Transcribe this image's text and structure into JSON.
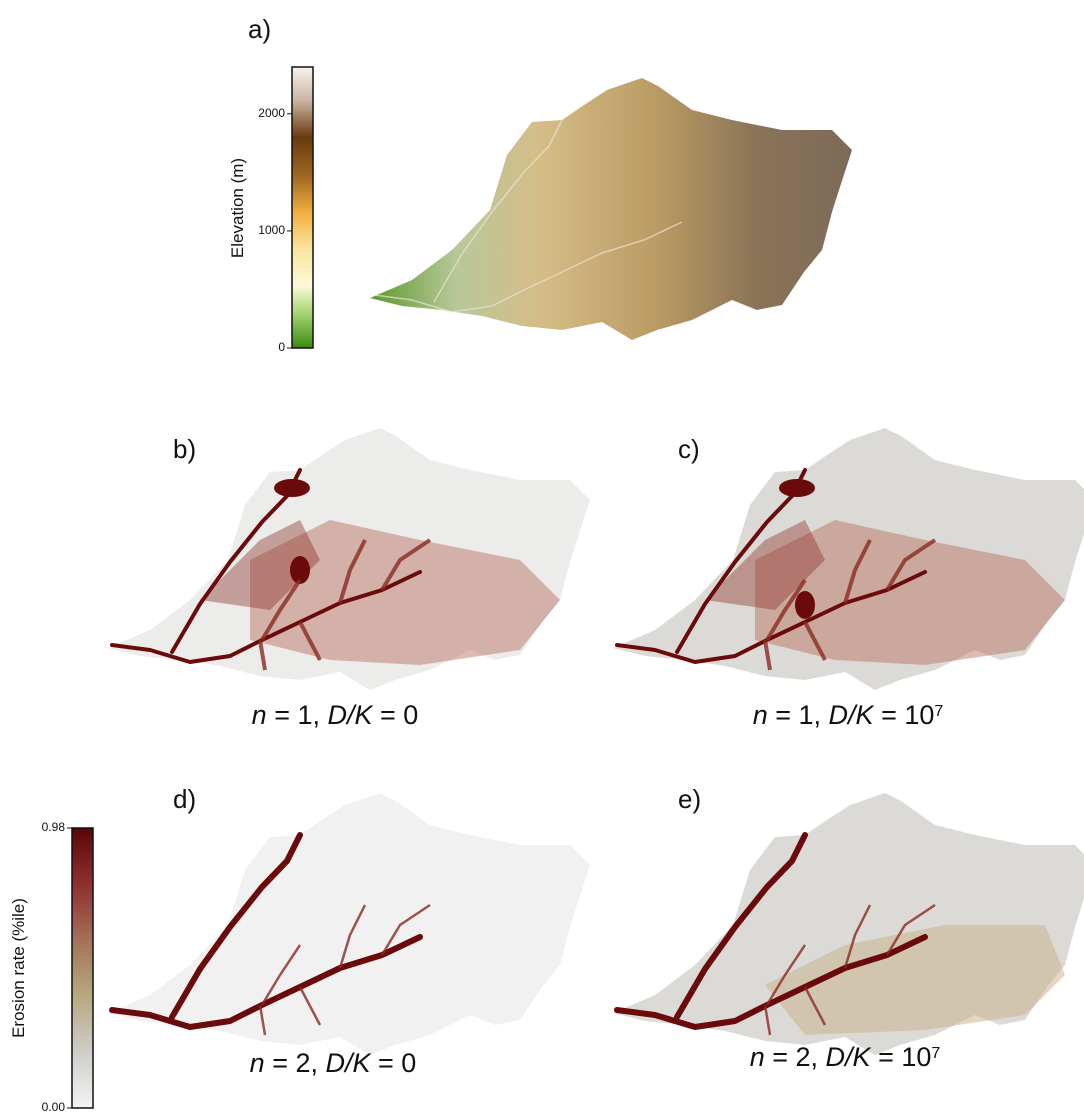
{
  "panel_a": {
    "label": "a)"
  },
  "elevation_colorbar": {
    "label": "Elevation (m)",
    "lim": [
      0,
      2400
    ],
    "ticks": [
      0,
      1000,
      2000
    ]
  },
  "erosion_colorbar": {
    "label": "Erosion rate (%ile)",
    "lim": [
      0,
      0.98
    ],
    "ticks": [
      {
        "value": 0,
        "label": "0.00"
      },
      0.98
    ]
  },
  "panels": [
    {
      "label": "b)",
      "caption": [
        "n",
        " = 1, ",
        "D/K",
        " = 0"
      ]
    },
    {
      "label": "c)",
      "caption": [
        "n",
        " = 1, ",
        "D/K",
        " = 10",
        "7"
      ]
    },
    {
      "label": "d)",
      "caption": [
        "n",
        " = 2, ",
        "D/K",
        " = 0"
      ]
    },
    {
      "label": "e)",
      "caption": [
        "n",
        " = 2, ",
        "D/K",
        " = 10",
        "7"
      ]
    }
  ]
}
